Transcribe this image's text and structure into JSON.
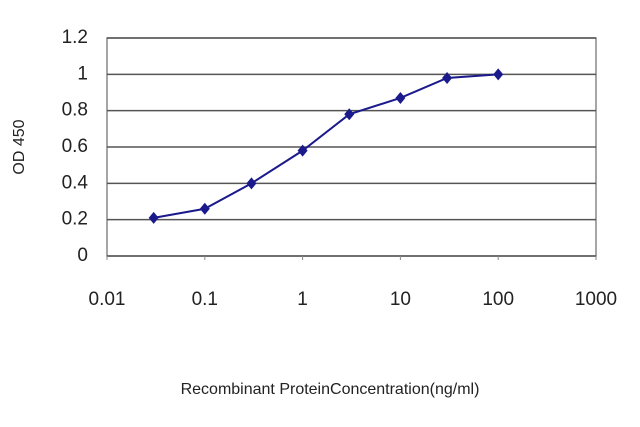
{
  "chart_data": {
    "type": "line",
    "x_label": "Recombinant ProteinConcentration(ng/ml)",
    "y_label": "OD 450",
    "x": [
      0.03,
      0.1,
      0.3,
      1,
      3,
      10,
      30,
      100
    ],
    "series": [
      {
        "color": "#1a1a8c",
        "values": [
          0.21,
          0.26,
          0.4,
          0.58,
          0.78,
          0.87,
          0.98,
          1.0
        ]
      }
    ],
    "xscale": "log",
    "xlim": [
      0.01,
      1000
    ],
    "xticks": [
      0.01,
      0.1,
      1,
      10,
      100,
      1000
    ],
    "ylim": [
      0,
      1.2
    ],
    "yticks": [
      0,
      0.2,
      0.4,
      0.6,
      0.8,
      1,
      1.2
    ],
    "grid": true
  }
}
